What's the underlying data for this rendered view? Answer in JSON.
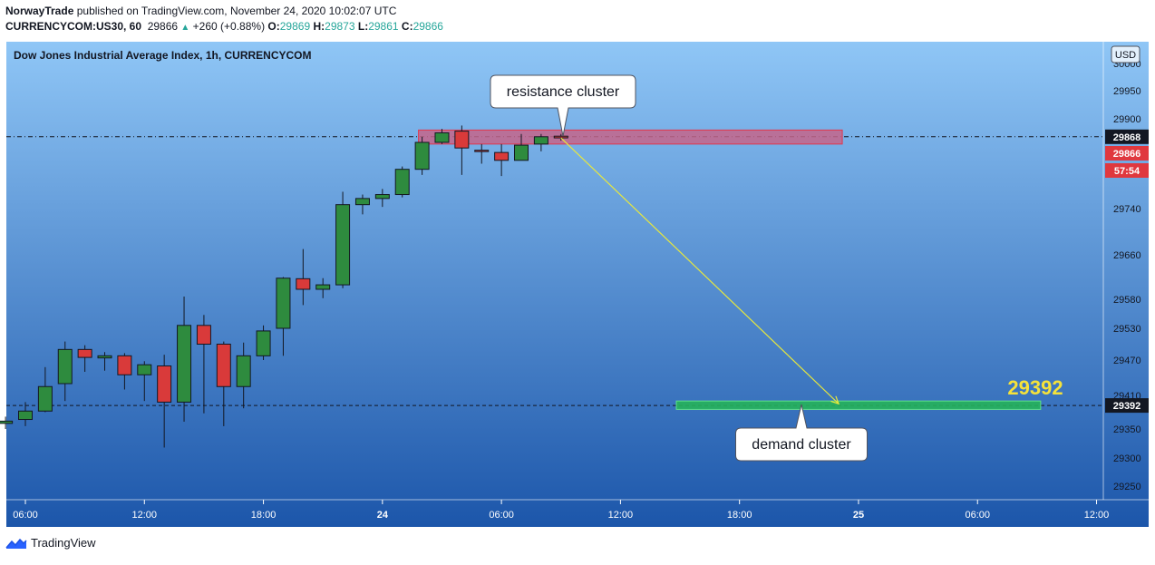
{
  "header": {
    "author": "NorwayTrade",
    "published_text": "published on TradingView.com, November 24, 2020 10:02:07 UTC",
    "symbol": "CURRENCYCOM:US30, 60",
    "last": "29866",
    "change": "+260 (+0.88%)",
    "o_label": "O:",
    "o_value": "29869",
    "h_label": "H:",
    "h_value": "29873",
    "l_label": "L:",
    "l_value": "29861",
    "c_label": "C:",
    "c_value": "29866"
  },
  "brand": "TradingView",
  "colors": {
    "bull": "#2e8b3e",
    "bear": "#d93a3a",
    "bg_top": "#8fc6f6",
    "bg_bottom": "#1c56aa",
    "resistance_zone": "#c4658a",
    "demand_zone": "#26b35a",
    "arrow": "#e8e83c",
    "target_text": "#f5e23a"
  },
  "chart_data": {
    "type": "candlestick",
    "title": "Dow Jones Industrial Average Index, 1h, CURRENCYCOM",
    "currency": "USD",
    "y_ticks": [
      29950,
      29900,
      29740,
      29660,
      29580,
      29530,
      29470,
      29410,
      29350,
      29300,
      29250
    ],
    "x_ticks": [
      "06:00",
      "12:00",
      "18:00",
      "24",
      "06:00",
      "12:00",
      "18:00",
      "25",
      "06:00",
      "12:00"
    ],
    "x_tick_positions": [
      6,
      12,
      18,
      24,
      30,
      36,
      42,
      48,
      54,
      60
    ],
    "candles": [
      {
        "t": 5,
        "o": 29360,
        "h": 29372,
        "l": 29350,
        "c": 29364
      },
      {
        "t": 6,
        "o": 29367,
        "h": 29398,
        "l": 29355,
        "c": 29382
      },
      {
        "t": 7,
        "o": 29382,
        "h": 29458,
        "l": 29380,
        "c": 29425
      },
      {
        "t": 8,
        "o": 29430,
        "h": 29505,
        "l": 29400,
        "c": 29490
      },
      {
        "t": 9,
        "o": 29490,
        "h": 29498,
        "l": 29450,
        "c": 29475
      },
      {
        "t": 10,
        "o": 29474,
        "h": 29485,
        "l": 29452,
        "c": 29478
      },
      {
        "t": 11,
        "o": 29478,
        "h": 29483,
        "l": 29420,
        "c": 29445
      },
      {
        "t": 12,
        "o": 29445,
        "h": 29468,
        "l": 29400,
        "c": 29462
      },
      {
        "t": 13,
        "o": 29460,
        "h": 29480,
        "l": 29318,
        "c": 29398
      },
      {
        "t": 14,
        "o": 29398,
        "h": 29585,
        "l": 29363,
        "c": 29535
      },
      {
        "t": 15,
        "o": 29535,
        "h": 29553,
        "l": 29378,
        "c": 29500
      },
      {
        "t": 16,
        "o": 29500,
        "h": 29505,
        "l": 29355,
        "c": 29425
      },
      {
        "t": 17,
        "o": 29425,
        "h": 29503,
        "l": 29387,
        "c": 29478
      },
      {
        "t": 18,
        "o": 29478,
        "h": 29535,
        "l": 29470,
        "c": 29525
      },
      {
        "t": 19,
        "o": 29530,
        "h": 29620,
        "l": 29478,
        "c": 29618
      },
      {
        "t": 20,
        "o": 29617,
        "h": 29670,
        "l": 29570,
        "c": 29598
      },
      {
        "t": 21,
        "o": 29598,
        "h": 29618,
        "l": 29582,
        "c": 29606
      },
      {
        "t": 22,
        "o": 29606,
        "h": 29770,
        "l": 29600,
        "c": 29747
      },
      {
        "t": 23,
        "o": 29747,
        "h": 29765,
        "l": 29730,
        "c": 29758
      },
      {
        "t": 24,
        "o": 29758,
        "h": 29775,
        "l": 29743,
        "c": 29765
      },
      {
        "t": 25,
        "o": 29765,
        "h": 29815,
        "l": 29760,
        "c": 29810
      },
      {
        "t": 26,
        "o": 29810,
        "h": 29868,
        "l": 29800,
        "c": 29858
      },
      {
        "t": 27,
        "o": 29858,
        "h": 29882,
        "l": 29855,
        "c": 29875
      },
      {
        "t": 28,
        "o": 29878,
        "h": 29888,
        "l": 29800,
        "c": 29848
      },
      {
        "t": 29,
        "o": 29844,
        "h": 29855,
        "l": 29820,
        "c": 29842
      },
      {
        "t": 30,
        "o": 29840,
        "h": 29855,
        "l": 29798,
        "c": 29826
      },
      {
        "t": 31,
        "o": 29826,
        "h": 29873,
        "l": 29826,
        "c": 29853
      },
      {
        "t": 32,
        "o": 29855,
        "h": 29873,
        "l": 29842,
        "c": 29868
      },
      {
        "t": 33,
        "o": 29869,
        "h": 29873,
        "l": 29861,
        "c": 29866
      }
    ],
    "price_labels": {
      "resistance": "29868",
      "last": "29866",
      "countdown": "57:54",
      "target": "29392",
      "top_partial": "30000"
    },
    "annotations": {
      "resistance": {
        "label": "resistance cluster",
        "y_low": 29855,
        "y_high": 29880,
        "t_start": 26,
        "t_end": 47
      },
      "demand": {
        "label": "demand cluster",
        "y_low": 29385,
        "y_high": 29400,
        "t_start": 39,
        "t_end": 57
      },
      "arrow": {
        "t_from": 33,
        "y_from": 29866,
        "t_to": 47,
        "y_to": 29395
      },
      "resistance_level": 29868,
      "target_level": 29392,
      "target_text": "29392"
    }
  }
}
